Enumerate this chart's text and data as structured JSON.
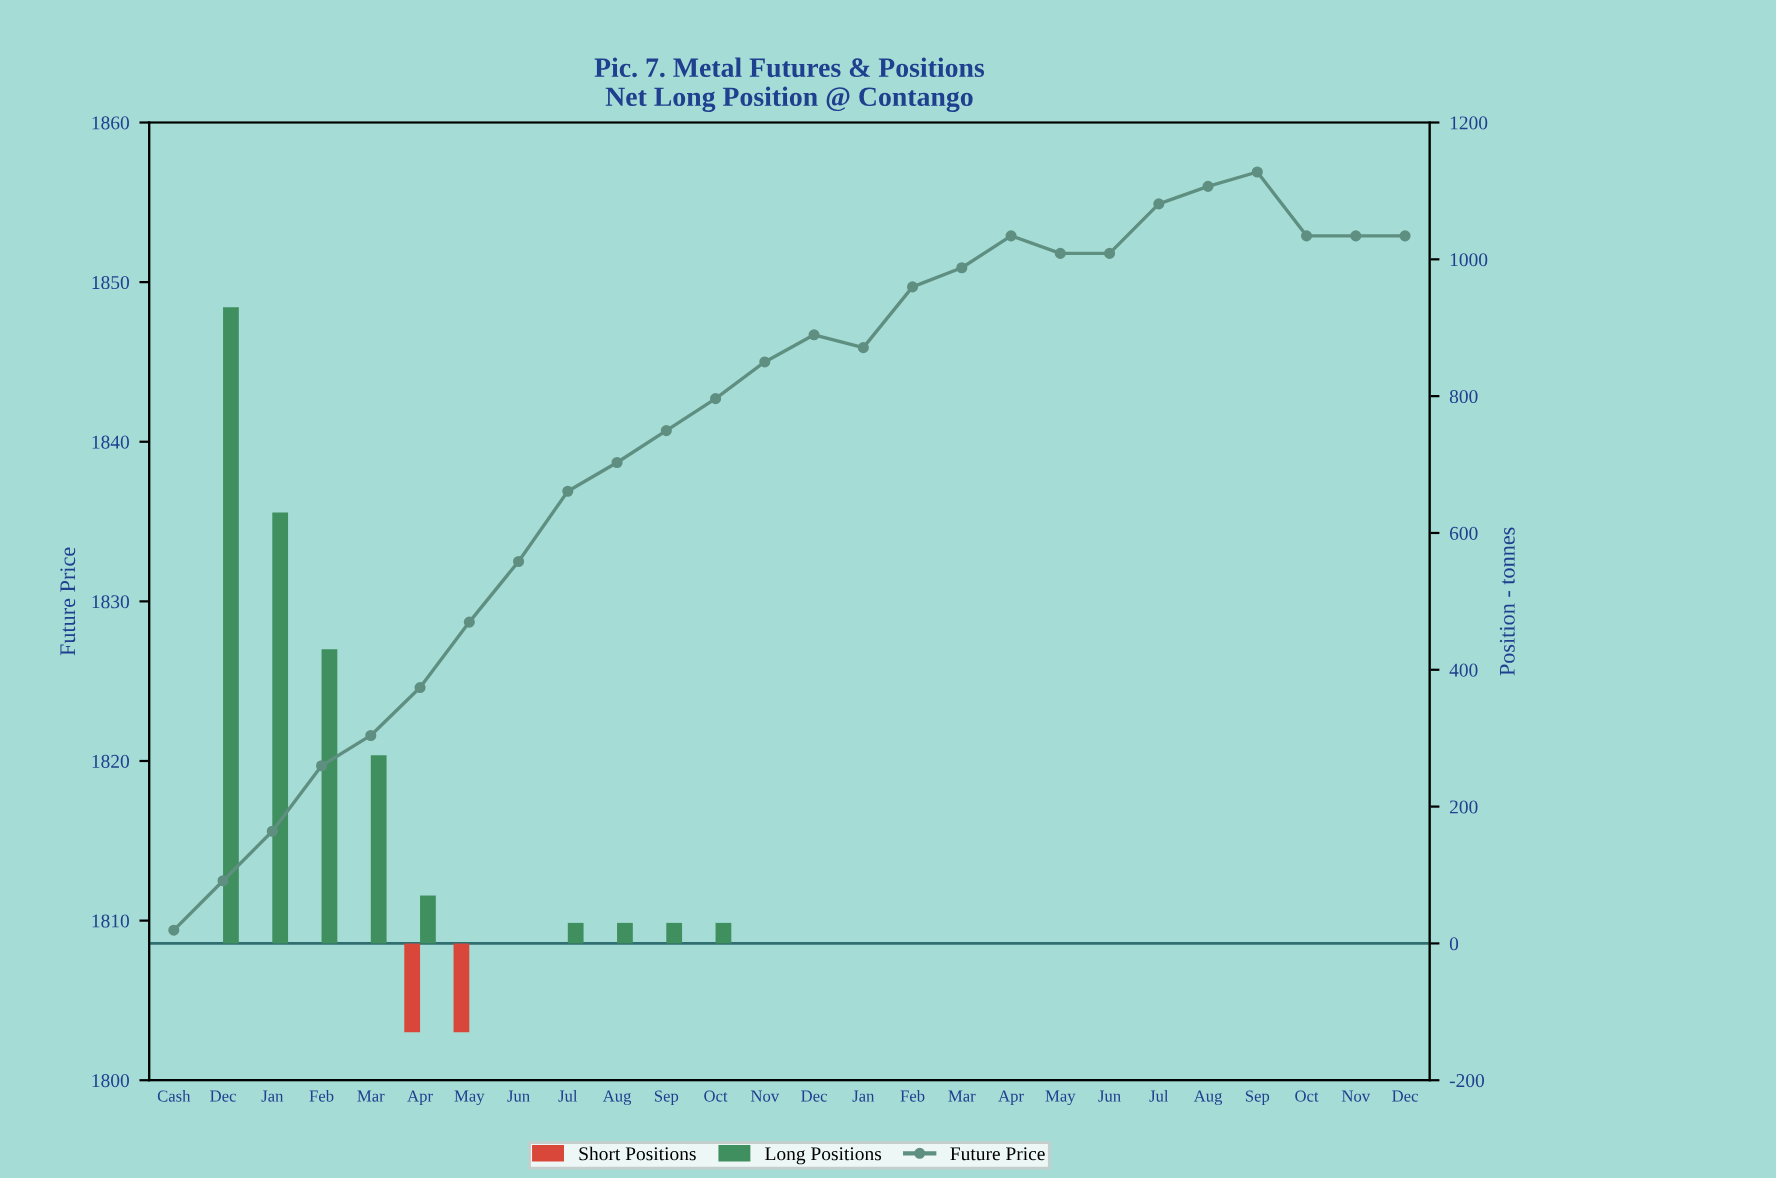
{
  "chart_data": {
    "type": "bar",
    "title": "Pic. 7. Metal Futures & Positions\nNet Long Position @ Contango",
    "ylabel": "Future Price",
    "y2label": "Position - tonnes",
    "categories": [
      "Cash",
      "Dec",
      "Jan",
      "Feb",
      "Mar",
      "Apr",
      "May",
      "Jun",
      "Jul",
      "Aug",
      "Sep",
      "Oct",
      "Nov",
      "Dec",
      "Jan",
      "Feb",
      "Mar",
      "Apr",
      "May",
      "Jun",
      "Jul",
      "Aug",
      "Sep",
      "Oct",
      "Nov",
      "Dec"
    ],
    "series": [
      {
        "name": "Short Positions",
        "axis": "y2",
        "color": "#d9473a",
        "values": [
          null,
          null,
          null,
          null,
          null,
          -130,
          -130,
          null,
          null,
          null,
          null,
          null,
          null,
          null,
          null,
          null,
          null,
          null,
          null,
          null,
          null,
          null,
          null,
          null,
          null,
          null
        ]
      },
      {
        "name": "Long Positions",
        "axis": "y2",
        "color": "#3f8f5f",
        "values": [
          null,
          930,
          630,
          430,
          275,
          70,
          null,
          null,
          30,
          30,
          30,
          30,
          null,
          null,
          null,
          null,
          null,
          null,
          null,
          null,
          null,
          null,
          null,
          null,
          null,
          null
        ]
      },
      {
        "name": "Future Price",
        "type": "line",
        "color": "#5f8f80",
        "marker": "circle",
        "values": [
          1809.4,
          1812.5,
          1815.6,
          1819.7,
          1821.6,
          1824.6,
          1828.7,
          1832.5,
          1836.9,
          1838.7,
          1840.7,
          1842.7,
          1845,
          1846.7,
          1845.9,
          1849.7,
          1850.9,
          1852.9,
          1851.8,
          1851.8,
          1854.9,
          1856,
          1856.9,
          1852.9,
          1852.9,
          1852.9
        ]
      }
    ],
    "ylim": [
      1800,
      1860
    ],
    "yticks": [
      1800,
      1810,
      1820,
      1830,
      1840,
      1850,
      1860
    ],
    "y2lim": [
      -200,
      1200
    ],
    "y2ticks": [
      -200,
      0,
      200,
      400,
      600,
      800,
      1000,
      1200
    ],
    "ref_lines": [
      {
        "axis": "y2",
        "value": 0,
        "color": "#2f6f6f"
      }
    ],
    "grid": false,
    "legend": "bottom"
  }
}
